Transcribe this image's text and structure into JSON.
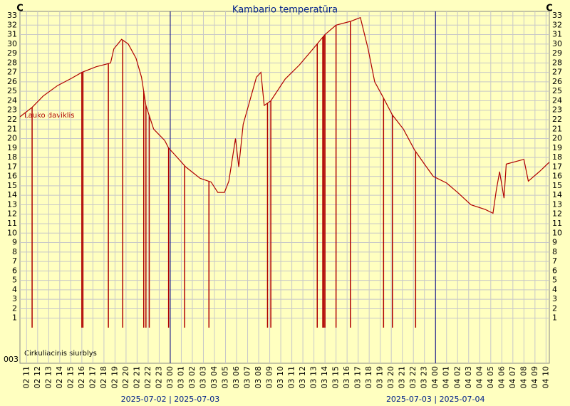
{
  "chart_data": {
    "type": "line",
    "title": "Kambario temperatūra",
    "y_unit_left": "C",
    "y_unit_right": "C",
    "bottom_label": "003",
    "date_labels": [
      {
        "value": 13,
        "label": "2025-07-02 | 2025-07-03"
      },
      {
        "value": 37,
        "label": "2025-07-03 | 2025-07-04"
      }
    ],
    "ylim": [
      0,
      33
    ],
    "yticks": [
      1,
      2,
      3,
      4,
      5,
      6,
      7,
      8,
      9,
      10,
      11,
      12,
      13,
      14,
      15,
      16,
      17,
      18,
      19,
      20,
      21,
      22,
      23,
      24,
      25,
      26,
      27,
      28,
      29,
      30,
      31,
      32,
      33
    ],
    "xlim": [
      -0.6,
      47.3
    ],
    "xticks": [
      {
        "value": 0,
        "label": "02 11"
      },
      {
        "value": 1,
        "label": "02 12"
      },
      {
        "value": 2,
        "label": "02 13"
      },
      {
        "value": 3,
        "label": "02 14"
      },
      {
        "value": 4,
        "label": "02 15"
      },
      {
        "value": 5,
        "label": "02 16"
      },
      {
        "value": 6,
        "label": "02 17"
      },
      {
        "value": 7,
        "label": "02 18"
      },
      {
        "value": 8,
        "label": "02 19"
      },
      {
        "value": 9,
        "label": "02 20"
      },
      {
        "value": 10,
        "label": "02 21"
      },
      {
        "value": 11,
        "label": "02 22"
      },
      {
        "value": 12,
        "label": "02 23"
      },
      {
        "value": 13,
        "label": "03 00"
      },
      {
        "value": 14,
        "label": "03 01"
      },
      {
        "value": 15,
        "label": "03 02"
      },
      {
        "value": 16,
        "label": "03 03"
      },
      {
        "value": 17,
        "label": "03 04"
      },
      {
        "value": 18,
        "label": "03 05"
      },
      {
        "value": 19,
        "label": "03 06"
      },
      {
        "value": 20,
        "label": "03 07"
      },
      {
        "value": 21,
        "label": "03 08"
      },
      {
        "value": 22,
        "label": "03 09"
      },
      {
        "value": 23,
        "label": "03 10"
      },
      {
        "value": 24,
        "label": "03 11"
      },
      {
        "value": 25,
        "label": "03 12"
      },
      {
        "value": 26,
        "label": "03 13"
      },
      {
        "value": 27,
        "label": "03 14"
      },
      {
        "value": 28,
        "label": "03 15"
      },
      {
        "value": 29,
        "label": "03 16"
      },
      {
        "value": 30,
        "label": "03 17"
      },
      {
        "value": 31,
        "label": "03 18"
      },
      {
        "value": 32,
        "label": "03 19"
      },
      {
        "value": 33,
        "label": "03 20"
      },
      {
        "value": 34,
        "label": "03 21"
      },
      {
        "value": 35,
        "label": "03 22"
      },
      {
        "value": 36,
        "label": "03 23"
      },
      {
        "value": 37,
        "label": "04 00"
      },
      {
        "value": 38,
        "label": "04 01"
      },
      {
        "value": 39,
        "label": "04 02"
      },
      {
        "value": 40,
        "label": "04 03"
      },
      {
        "value": 41,
        "label": "04 04"
      },
      {
        "value": 42,
        "label": "04 05"
      },
      {
        "value": 43,
        "label": "04 06"
      },
      {
        "value": 44,
        "label": "04 07"
      },
      {
        "value": 45,
        "label": "04 08"
      },
      {
        "value": 46,
        "label": "04 09"
      },
      {
        "value": 47,
        "label": "04 10"
      }
    ],
    "grid": true,
    "series": [
      {
        "name": "Lauko daviklis",
        "color": "#b00000",
        "x": [
          -0.6,
          0.5,
          1.5,
          2.8,
          4.1,
          5.0,
          6.3,
          7.3,
          7.6,
          7.9,
          8.6,
          9.2,
          9.9,
          10.4,
          10.8,
          11.5,
          12.5,
          12.85,
          13.4,
          14.4,
          15.7,
          16.7,
          17.3,
          17.9,
          18.3,
          18.9,
          19.2,
          19.6,
          20.2,
          20.8,
          21.2,
          21.5,
          22.1,
          23.4,
          24.7,
          26.0,
          27.0,
          28.0,
          29.3,
          30.2,
          30.9,
          31.5,
          32.2,
          33.1,
          34.1,
          35.1,
          36.0,
          36.8,
          38.0,
          39.0,
          40.2,
          41.5,
          42.2,
          42.5,
          42.8,
          43.2,
          43.4,
          45.0,
          45.4,
          46.4,
          47.3
        ],
        "values": [
          22.3,
          23.3,
          24.5,
          25.6,
          26.4,
          27.0,
          27.6,
          27.9,
          28.0,
          29.5,
          30.5,
          30.0,
          28.5,
          26.5,
          23.5,
          21.0,
          19.8,
          19.0,
          18.3,
          17.0,
          15.8,
          15.4,
          14.3,
          14.3,
          15.5,
          20.0,
          17.0,
          21.5,
          24.0,
          26.5,
          27.0,
          23.5,
          24.0,
          26.3,
          27.8,
          29.6,
          31.0,
          32.0,
          32.4,
          32.8,
          29.5,
          26.0,
          24.5,
          22.5,
          21.0,
          18.8,
          17.3,
          16.0,
          15.3,
          14.3,
          13.0,
          12.5,
          12.1,
          14.5,
          16.5,
          13.7,
          17.3,
          17.8,
          15.5,
          16.5,
          17.5
        ]
      },
      {
        "name": "Cirkuliacinis siurblys",
        "color": "#b00000",
        "x": [
          0.5,
          5.0,
          5.1,
          7.4,
          8.7,
          10.6,
          10.8,
          11.1,
          12.85,
          14.3,
          16.5,
          21.8,
          22.1,
          26.3,
          26.8,
          26.9,
          27.0,
          28.0,
          29.3,
          32.3,
          33.1,
          35.2
        ],
        "values": [
          0,
          0,
          0,
          0,
          0,
          0,
          0,
          0,
          0,
          0,
          0,
          0,
          0,
          0,
          0,
          0,
          0,
          0,
          0,
          0,
          0,
          0
        ]
      }
    ]
  }
}
